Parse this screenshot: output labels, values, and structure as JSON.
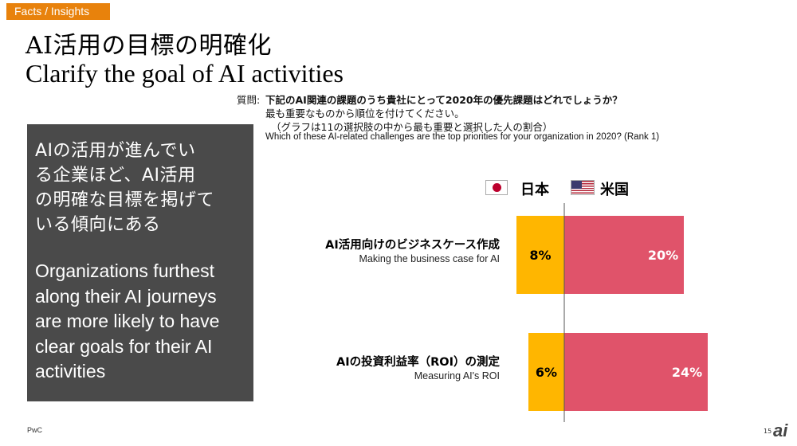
{
  "tag": "Facts / Insights",
  "title_ja": "AI活用の目標の明確化",
  "title_en": "Clarify the goal of AI activities",
  "question": {
    "label": "質問:",
    "line1": "下記のAI関連の課題のうち貴社にとって2020年の優先課題はどれでしょうか？",
    "line2": "最も重要なものから順位を付けてください。",
    "line3": "（グラフは11の選択肢の中から最も重要と選択した人の割合）",
    "english": "Which of these AI-related challenges are the top priorities for your organization in 2020? (Rank 1)"
  },
  "panel": {
    "text_ja": "AIの活用が進んでいる企業ほど、AI活用の明確な目標を掲げている傾向にある",
    "text_en": "Organizations furthest along their AI journeys are more likely to have clear goals for their AI activities"
  },
  "legend": {
    "japan": "日本",
    "us": "米国"
  },
  "colors": {
    "japan": "#ffb600",
    "us": "#e0536a",
    "panel": "#4a4a4a",
    "tag": "#e8820c"
  },
  "icons": [
    "flag-japan-icon",
    "flag-us-icon"
  ],
  "footer": {
    "left": "PwC",
    "page": "15",
    "logo": "ai"
  },
  "chart_data": {
    "type": "bar",
    "orientation": "horizontal-diverging",
    "categories": [
      {
        "ja": "AI活用向けのビジネスケース作成",
        "en": "Making the business case for AI"
      },
      {
        "ja": "AIの投資利益率（ROI）の測定",
        "en": "Measuring AI's ROI"
      }
    ],
    "series": [
      {
        "name": "日本",
        "values": [
          8,
          6
        ],
        "labels": [
          "8%",
          "6%"
        ]
      },
      {
        "name": "米国",
        "values": [
          20,
          24
        ],
        "labels": [
          "20%",
          "24%"
        ]
      }
    ],
    "unit": "%",
    "legend_position": "top"
  }
}
